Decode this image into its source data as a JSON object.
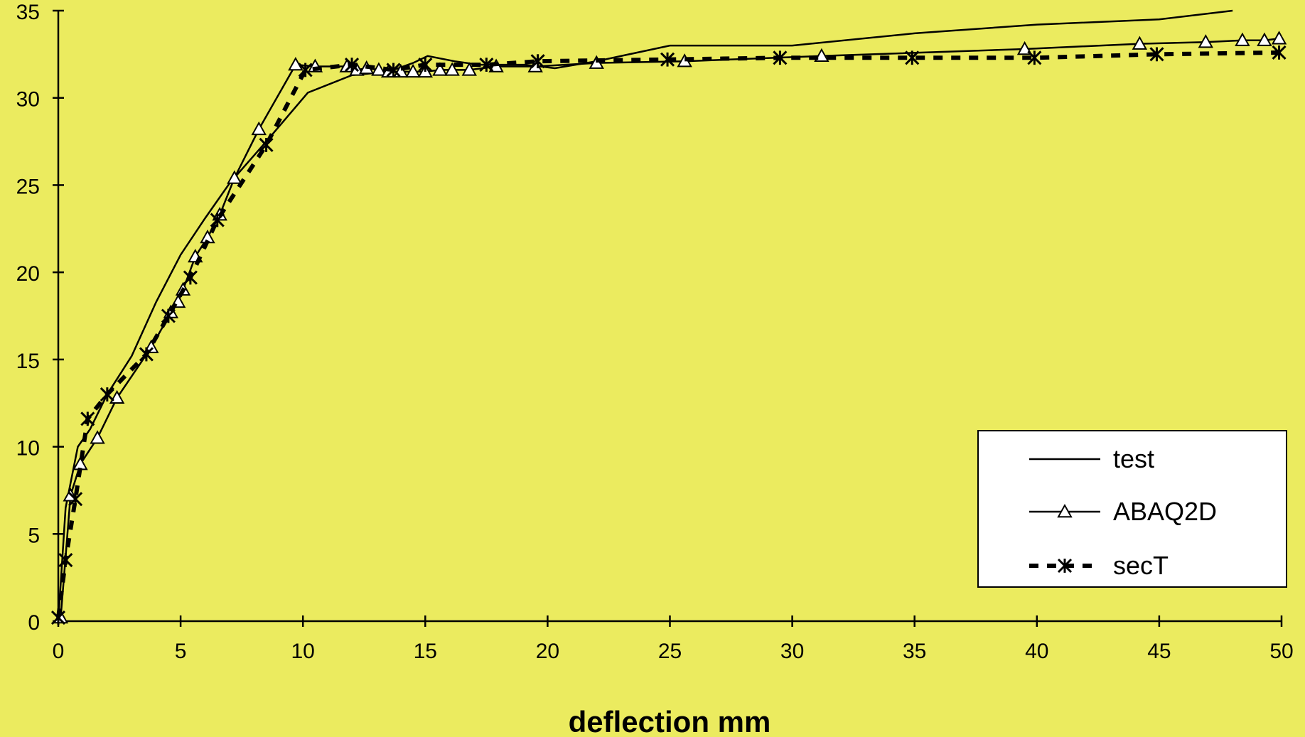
{
  "chart_data": {
    "type": "line",
    "xlabel": "deflection mm",
    "ylabel": "",
    "xlim": [
      0,
      50
    ],
    "ylim": [
      0,
      35
    ],
    "xticks": [
      0,
      5,
      10,
      15,
      20,
      25,
      30,
      35,
      40,
      45,
      50
    ],
    "yticks": [
      0,
      5,
      10,
      15,
      20,
      25,
      30,
      35
    ],
    "grid": false,
    "legend_position": "bottom-right",
    "background": "#ebeb5f",
    "series": [
      {
        "name": "test",
        "style": "solid",
        "marker": "none",
        "color": "#000000",
        "x": [
          0,
          0.3,
          0.8,
          1.3,
          2.0,
          3.0,
          4.0,
          5.0,
          6.0,
          7.0,
          8.5,
          10.2,
          12.0,
          13.5,
          14.5,
          15.1,
          16.2,
          17.2,
          19.1,
          20.3,
          22.0,
          25.0,
          30.0,
          35.0,
          40.0,
          45.0,
          48.0
        ],
        "y": [
          0,
          6.5,
          10.0,
          11.0,
          13.0,
          15.2,
          18.3,
          21.0,
          23.1,
          25.1,
          27.5,
          30.3,
          31.3,
          31.5,
          32.0,
          32.4,
          32.1,
          31.9,
          31.9,
          31.7,
          32.1,
          33.0,
          33.0,
          33.7,
          34.2,
          34.5,
          35.0
        ]
      },
      {
        "name": "ABAQ2D",
        "style": "solid",
        "marker": "triangle",
        "color": "#000000",
        "x": [
          0.1,
          0.5,
          0.9,
          1.6,
          2.4,
          3.8,
          4.6,
          4.9,
          5.1,
          5.6,
          6.1,
          6.6,
          7.2,
          8.2,
          9.7,
          10.5,
          11.8,
          12.2,
          12.6,
          13.1,
          13.5,
          14.0,
          14.5,
          15.0,
          15.6,
          16.1,
          16.8,
          17.9,
          19.5,
          22.0,
          25.6,
          31.2,
          39.5,
          44.2,
          46.9,
          48.4,
          49.3,
          49.9
        ],
        "y": [
          0.2,
          7.2,
          9.0,
          10.5,
          12.8,
          15.7,
          17.7,
          18.3,
          19.0,
          20.9,
          22.0,
          23.3,
          25.4,
          28.2,
          31.9,
          31.8,
          31.8,
          31.6,
          31.7,
          31.6,
          31.5,
          31.5,
          31.5,
          31.5,
          31.6,
          31.6,
          31.6,
          31.8,
          31.8,
          32.0,
          32.1,
          32.4,
          32.8,
          33.1,
          33.2,
          33.3,
          33.3,
          33.4
        ]
      },
      {
        "name": "secT",
        "style": "dashed",
        "marker": "asterisk",
        "color": "#000000",
        "x": [
          0,
          0.3,
          0.7,
          1.2,
          2.0,
          3.6,
          4.5,
          5.4,
          6.5,
          8.5,
          10.1,
          12.0,
          13.7,
          15.0,
          17.5,
          19.6,
          24.9,
          29.5,
          34.9,
          39.9,
          44.9,
          49.9
        ],
        "y": [
          0.2,
          3.5,
          7.0,
          11.6,
          13.0,
          15.3,
          17.5,
          19.7,
          23.0,
          27.3,
          31.6,
          31.9,
          31.6,
          31.9,
          31.9,
          32.1,
          32.2,
          32.3,
          32.3,
          32.3,
          32.5,
          32.6
        ]
      }
    ]
  }
}
